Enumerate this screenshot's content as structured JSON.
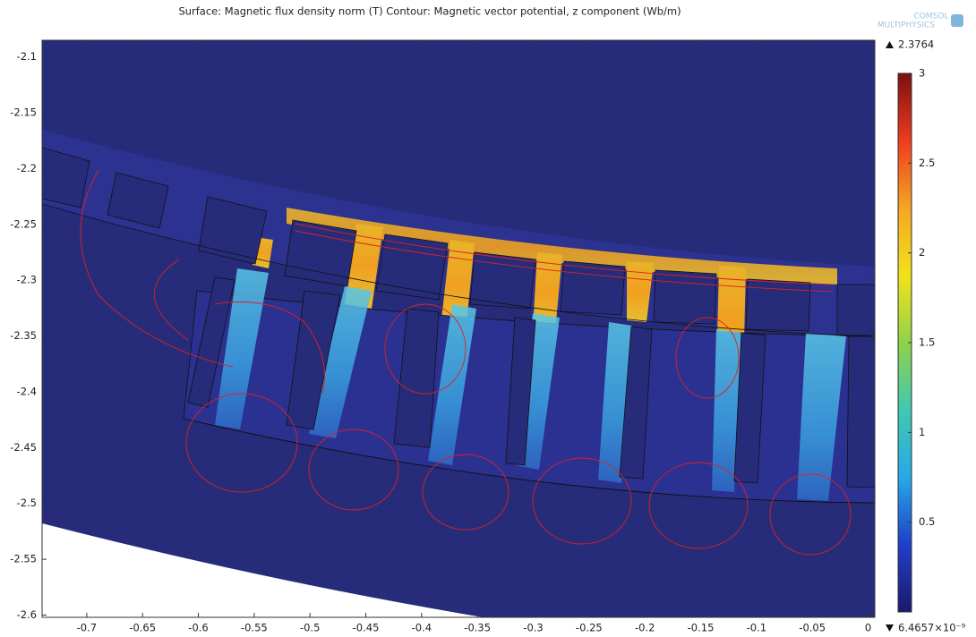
{
  "chart_data": {
    "type": "surface",
    "title": "Surface: Magnetic flux density norm (T) Contour: Magnetic vector potential, z component (Wb/m)",
    "logo": [
      "COMSOL",
      "MULTIPHYSICS"
    ],
    "xlim": [
      -0.74,
      0.006
    ],
    "xticks": [
      -0.7,
      -0.65,
      -0.6,
      -0.55,
      -0.5,
      -0.45,
      -0.4,
      -0.35,
      -0.3,
      -0.25,
      -0.2,
      -0.15,
      -0.1,
      -0.05,
      0
    ],
    "ylim": [
      -2.602,
      -2.085
    ],
    "yticks": [
      -2.1,
      -2.15,
      -2.2,
      -2.25,
      -2.3,
      -2.35,
      -2.4,
      -2.45,
      -2.5,
      -2.55,
      -2.6
    ],
    "colorbar": {
      "clim": [
        0,
        3
      ],
      "ticks": [
        3,
        2.5,
        2,
        1.5,
        1,
        0.5
      ],
      "max": 2.3764,
      "min": {
        "value": 6.4657e-09,
        "label": "6.4657×10⁻⁹"
      },
      "colors": [
        "#1a1a6e",
        "#1f3fc8",
        "#27a9e8",
        "#41c8b0",
        "#8fd24a",
        "#f2e21a",
        "#f5a623",
        "#ef3b1e",
        "#7a1010"
      ]
    }
  }
}
